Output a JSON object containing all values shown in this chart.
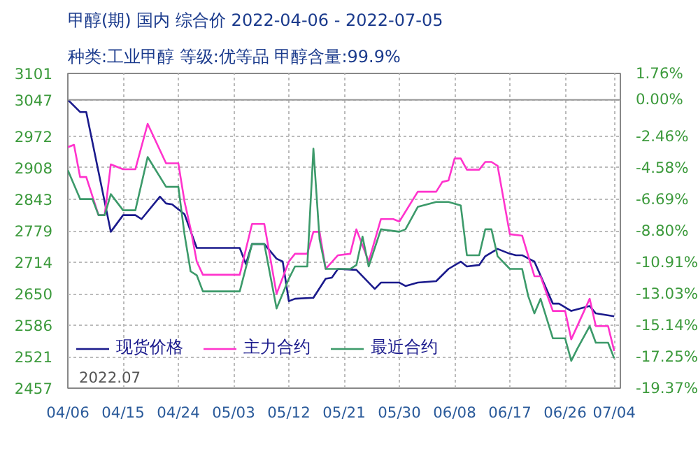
{
  "chart_data": {
    "type": "line",
    "title": "甲醇(期)  国内  综合价  2022-04-06 - 2022-07-05",
    "subtitle": "种类:工业甲醇  等级:优等品  甲醇含量:99.9%",
    "annotations": [
      "2022.07"
    ],
    "xlim": [
      "2022-04-06",
      "2022-07-05"
    ],
    "xticks": [
      {
        "value": "2022-04-06",
        "label": "04/06"
      },
      {
        "value": "2022-04-15",
        "label": "04/15"
      },
      {
        "value": "2022-04-24",
        "label": "04/24"
      },
      {
        "value": "2022-05-03",
        "label": "05/03"
      },
      {
        "value": "2022-05-12",
        "label": "05/12"
      },
      {
        "value": "2022-05-21",
        "label": "05/21"
      },
      {
        "value": "2022-05-30",
        "label": "05/30"
      },
      {
        "value": "2022-06-08",
        "label": "06/08"
      },
      {
        "value": "2022-06-17",
        "label": "06/17"
      },
      {
        "value": "2022-06-26",
        "label": "06/26"
      },
      {
        "value": "2022-07-04",
        "label": "07/04"
      }
    ],
    "ylim": [
      2457,
      3101
    ],
    "yticks": [
      2457,
      2521,
      2586,
      2650,
      2714,
      2779,
      2843,
      2908,
      2972,
      3047,
      3101
    ],
    "y2lim": [
      -19.37,
      1.76
    ],
    "y2ticks": [
      {
        "value": -19.37,
        "label": "-19.37%"
      },
      {
        "value": -17.25,
        "label": "-17.25%"
      },
      {
        "value": -15.14,
        "label": "-15.14%"
      },
      {
        "value": -13.03,
        "label": "-13.03%"
      },
      {
        "value": -10.91,
        "label": "-10.91%"
      },
      {
        "value": -8.8,
        "label": "-8.80%"
      },
      {
        "value": -6.69,
        "label": "-6.69%"
      },
      {
        "value": -4.58,
        "label": "-4.58%"
      },
      {
        "value": -2.46,
        "label": "-2.46%"
      },
      {
        "value": 0,
        "label": "0.00%"
      },
      {
        "value": 1.76,
        "label": "1.76%"
      }
    ],
    "ref_lines": [
      {
        "axis": "y",
        "value": 3047,
        "color": "#999999"
      }
    ],
    "grid": true,
    "legend": "bottom",
    "line_style": "solid",
    "series": [
      {
        "name": "现货价格",
        "color": "#1a1a8c",
        "x": [
          "2022-04-06",
          "2022-04-08",
          "2022-04-09",
          "2022-04-13",
          "2022-04-15",
          "2022-04-17",
          "2022-04-18",
          "2022-04-21",
          "2022-04-22",
          "2022-04-23",
          "2022-04-25",
          "2022-04-27",
          "2022-05-04",
          "2022-05-05",
          "2022-05-06",
          "2022-05-08",
          "2022-05-10",
          "2022-05-11",
          "2022-05-12",
          "2022-05-13",
          "2022-05-16",
          "2022-05-18",
          "2022-05-19",
          "2022-05-20",
          "2022-05-23",
          "2022-05-26",
          "2022-05-27",
          "2022-05-30",
          "2022-05-31",
          "2022-06-02",
          "2022-06-05",
          "2022-06-07",
          "2022-06-09",
          "2022-06-10",
          "2022-06-12",
          "2022-06-13",
          "2022-06-15",
          "2022-06-17",
          "2022-06-18",
          "2022-06-19",
          "2022-06-21",
          "2022-06-24",
          "2022-06-25",
          "2022-06-27",
          "2022-06-30",
          "2022-07-01",
          "2022-07-04"
        ],
        "values": [
          3047,
          3022,
          3022,
          2777,
          2811,
          2811,
          2803,
          2849,
          2835,
          2833,
          2813,
          2744,
          2744,
          2711,
          2752,
          2752,
          2722,
          2716,
          2635,
          2640,
          2642,
          2681,
          2683,
          2701,
          2699,
          2660,
          2673,
          2673,
          2666,
          2673,
          2676,
          2701,
          2716,
          2706,
          2709,
          2727,
          2742,
          2732,
          2729,
          2729,
          2716,
          2630,
          2630,
          2615,
          2625,
          2610,
          2604
        ]
      },
      {
        "name": "主力合约",
        "color": "#ff33cc",
        "x": [
          "2022-04-06",
          "2022-04-07",
          "2022-04-08",
          "2022-04-09",
          "2022-04-11",
          "2022-04-12",
          "2022-04-13",
          "2022-04-15",
          "2022-04-17",
          "2022-04-19",
          "2022-04-22",
          "2022-04-24",
          "2022-04-25",
          "2022-04-26",
          "2022-04-27",
          "2022-04-28",
          "2022-05-04",
          "2022-05-06",
          "2022-05-08",
          "2022-05-10",
          "2022-05-12",
          "2022-05-13",
          "2022-05-15",
          "2022-05-16",
          "2022-05-17",
          "2022-05-18",
          "2022-05-20",
          "2022-05-22",
          "2022-05-23",
          "2022-05-25",
          "2022-05-27",
          "2022-05-29",
          "2022-05-30",
          "2022-06-02",
          "2022-06-05",
          "2022-06-06",
          "2022-06-07",
          "2022-06-08",
          "2022-06-09",
          "2022-06-10",
          "2022-06-12",
          "2022-06-13",
          "2022-06-14",
          "2022-06-15",
          "2022-06-17",
          "2022-06-19",
          "2022-06-21",
          "2022-06-22",
          "2022-06-24",
          "2022-06-26",
          "2022-06-27",
          "2022-06-30",
          "2022-07-01",
          "2022-07-03",
          "2022-07-04"
        ],
        "values": [
          2950,
          2955,
          2889,
          2889,
          2811,
          2811,
          2915,
          2905,
          2905,
          2998,
          2917,
          2917,
          2839,
          2783,
          2716,
          2689,
          2689,
          2793,
          2793,
          2650,
          2716,
          2732,
          2732,
          2777,
          2777,
          2701,
          2729,
          2732,
          2782,
          2716,
          2803,
          2803,
          2798,
          2859,
          2859,
          2879,
          2882,
          2927,
          2927,
          2904,
          2904,
          2920,
          2920,
          2912,
          2772,
          2769,
          2686,
          2686,
          2615,
          2615,
          2557,
          2640,
          2584,
          2584,
          2533
        ]
      },
      {
        "name": "最近合约",
        "color": "#3c9a6a",
        "x": [
          "2022-04-06",
          "2022-04-08",
          "2022-04-10",
          "2022-04-11",
          "2022-04-12",
          "2022-04-13",
          "2022-04-15",
          "2022-04-17",
          "2022-04-19",
          "2022-04-22",
          "2022-04-24",
          "2022-04-25",
          "2022-04-26",
          "2022-04-27",
          "2022-04-28",
          "2022-05-04",
          "2022-05-06",
          "2022-05-08",
          "2022-05-10",
          "2022-05-12",
          "2022-05-13",
          "2022-05-15",
          "2022-05-16",
          "2022-05-17",
          "2022-05-18",
          "2022-05-22",
          "2022-05-23",
          "2022-05-24",
          "2022-05-25",
          "2022-05-27",
          "2022-05-30",
          "2022-05-31",
          "2022-06-02",
          "2022-06-05",
          "2022-06-07",
          "2022-06-09",
          "2022-06-10",
          "2022-06-12",
          "2022-06-13",
          "2022-06-14",
          "2022-06-15",
          "2022-06-17",
          "2022-06-19",
          "2022-06-20",
          "2022-06-21",
          "2022-06-22",
          "2022-06-24",
          "2022-06-26",
          "2022-06-27",
          "2022-06-28",
          "2022-06-30",
          "2022-07-01",
          "2022-07-03",
          "2022-07-04"
        ],
        "values": [
          2903,
          2844,
          2844,
          2811,
          2811,
          2854,
          2821,
          2821,
          2930,
          2869,
          2869,
          2772,
          2696,
          2688,
          2655,
          2655,
          2752,
          2752,
          2620,
          2681,
          2706,
          2706,
          2947,
          2762,
          2701,
          2701,
          2709,
          2767,
          2706,
          2782,
          2777,
          2782,
          2828,
          2838,
          2838,
          2831,
          2729,
          2729,
          2782,
          2782,
          2727,
          2701,
          2701,
          2645,
          2610,
          2640,
          2559,
          2559,
          2513,
          2538,
          2584,
          2550,
          2550,
          2518
        ]
      }
    ]
  }
}
